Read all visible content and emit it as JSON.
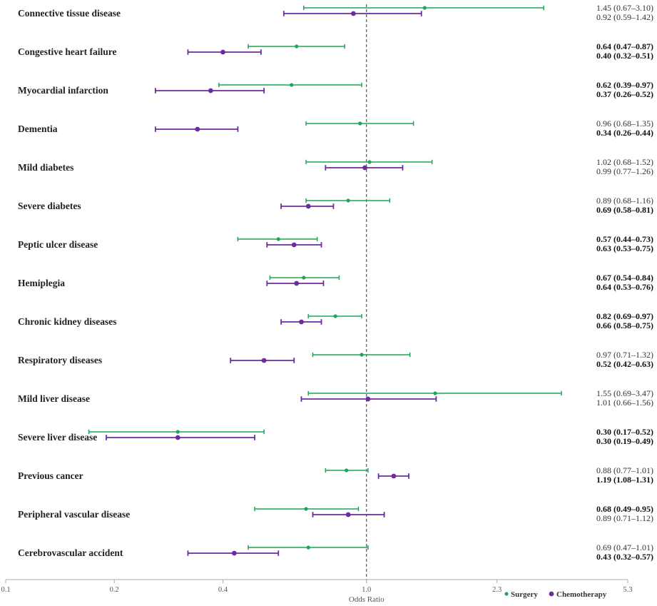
{
  "chart_data": {
    "type": "forest",
    "xlabel": "Odds Ratio",
    "x_scale": "log",
    "xlim": [
      0.1,
      5.3
    ],
    "x_ticks": [
      0.1,
      0.2,
      0.4,
      1.0,
      2.3,
      5.3
    ],
    "x_tick_labels": [
      "0.1",
      "0.2",
      "0.4",
      "1.0",
      "2.3",
      "5.3"
    ],
    "reference_line": 1.0,
    "legend_position": "bottom-right",
    "series": [
      {
        "name": "Surgery",
        "color": "#1fa55a"
      },
      {
        "name": "Chemotherapy",
        "color": "#6a2c9f"
      }
    ],
    "rows": [
      {
        "label": "Connective tissue disease",
        "surgery": {
          "or": 1.45,
          "lo": 0.67,
          "hi": 3.1,
          "text": "1.45 (0.67–3.10)",
          "significant": false
        },
        "chemotherapy": {
          "or": 0.92,
          "lo": 0.59,
          "hi": 1.42,
          "text": "0.92 (0.59–1.42)",
          "significant": false
        }
      },
      {
        "label": "Congestive heart failure",
        "surgery": {
          "or": 0.64,
          "lo": 0.47,
          "hi": 0.87,
          "text": "0.64 (0.47–0.87)",
          "significant": true
        },
        "chemotherapy": {
          "or": 0.4,
          "lo": 0.32,
          "hi": 0.51,
          "text": "0.40 (0.32–0.51)",
          "significant": true
        }
      },
      {
        "label": "Myocardial infarction",
        "surgery": {
          "or": 0.62,
          "lo": 0.39,
          "hi": 0.97,
          "text": "0.62 (0.39–0.97)",
          "significant": true
        },
        "chemotherapy": {
          "or": 0.37,
          "lo": 0.26,
          "hi": 0.52,
          "text": "0.37 (0.26–0.52)",
          "significant": true
        }
      },
      {
        "label": "Dementia",
        "surgery": {
          "or": 0.96,
          "lo": 0.68,
          "hi": 1.35,
          "text": "0.96 (0.68–1.35)",
          "significant": false
        },
        "chemotherapy": {
          "or": 0.34,
          "lo": 0.26,
          "hi": 0.44,
          "text": "0.34 (0.26–0.44)",
          "significant": true
        }
      },
      {
        "label": "Mild diabetes",
        "surgery": {
          "or": 1.02,
          "lo": 0.68,
          "hi": 1.52,
          "text": "1.02 (0.68–1.52)",
          "significant": false
        },
        "chemotherapy": {
          "or": 0.99,
          "lo": 0.77,
          "hi": 1.26,
          "text": "0.99 (0.77–1.26)",
          "significant": false
        }
      },
      {
        "label": "Severe diabetes",
        "surgery": {
          "or": 0.89,
          "lo": 0.68,
          "hi": 1.16,
          "text": "0.89 (0.68–1.16)",
          "significant": false
        },
        "chemotherapy": {
          "or": 0.69,
          "lo": 0.58,
          "hi": 0.81,
          "text": "0.69 (0.58–0.81)",
          "significant": true
        }
      },
      {
        "label": "Peptic ulcer disease",
        "surgery": {
          "or": 0.57,
          "lo": 0.44,
          "hi": 0.73,
          "text": "0.57 (0.44–0.73)",
          "significant": true
        },
        "chemotherapy": {
          "or": 0.63,
          "lo": 0.53,
          "hi": 0.75,
          "text": "0.63 (0.53–0.75)",
          "significant": true
        }
      },
      {
        "label": "Hemiplegia",
        "surgery": {
          "or": 0.67,
          "lo": 0.54,
          "hi": 0.84,
          "text": "0.67 (0.54–0.84)",
          "significant": true
        },
        "chemotherapy": {
          "or": 0.64,
          "lo": 0.53,
          "hi": 0.76,
          "text": "0.64 (0.53–0.76)",
          "significant": true
        }
      },
      {
        "label": "Chronic kidney diseases",
        "surgery": {
          "or": 0.82,
          "lo": 0.69,
          "hi": 0.97,
          "text": "0.82 (0.69–0.97)",
          "significant": true
        },
        "chemotherapy": {
          "or": 0.66,
          "lo": 0.58,
          "hi": 0.75,
          "text": "0.66 (0.58–0.75)",
          "significant": true
        }
      },
      {
        "label": "Respiratory diseases",
        "surgery": {
          "or": 0.97,
          "lo": 0.71,
          "hi": 1.32,
          "text": "0.97 (0.71–1.32)",
          "significant": false
        },
        "chemotherapy": {
          "or": 0.52,
          "lo": 0.42,
          "hi": 0.63,
          "text": "0.52 (0.42–0.63)",
          "significant": true
        }
      },
      {
        "label": "Mild liver disease",
        "surgery": {
          "or": 1.55,
          "lo": 0.69,
          "hi": 3.47,
          "text": "1.55 (0.69–3.47)",
          "significant": false
        },
        "chemotherapy": {
          "or": 1.01,
          "lo": 0.66,
          "hi": 1.56,
          "text": "1.01 (0.66–1.56)",
          "significant": false
        }
      },
      {
        "label": "Severe liver disease",
        "surgery": {
          "or": 0.3,
          "lo": 0.17,
          "hi": 0.52,
          "text": "0.30 (0.17–0.52)",
          "significant": true
        },
        "chemotherapy": {
          "or": 0.3,
          "lo": 0.19,
          "hi": 0.49,
          "text": "0.30 (0.19–0.49)",
          "significant": true
        }
      },
      {
        "label": "Previous cancer",
        "surgery": {
          "or": 0.88,
          "lo": 0.77,
          "hi": 1.01,
          "text": "0.88 (0.77–1.01)",
          "significant": false
        },
        "chemotherapy": {
          "or": 1.19,
          "lo": 1.08,
          "hi": 1.31,
          "text": "1.19 (1.08–1.31)",
          "significant": true
        }
      },
      {
        "label": "Peripheral vascular disease",
        "surgery": {
          "or": 0.68,
          "lo": 0.49,
          "hi": 0.95,
          "text": "0.68 (0.49–0.95)",
          "significant": true
        },
        "chemotherapy": {
          "or": 0.89,
          "lo": 0.71,
          "hi": 1.12,
          "text": "0.89 (0.71–1.12)",
          "significant": false
        }
      },
      {
        "label": "Cerebrovascular accident",
        "surgery": {
          "or": 0.69,
          "lo": 0.47,
          "hi": 1.01,
          "text": "0.69 (0.47–1.01)",
          "significant": false
        },
        "chemotherapy": {
          "or": 0.43,
          "lo": 0.32,
          "hi": 0.57,
          "text": "0.43 (0.32–0.57)",
          "significant": true
        }
      }
    ]
  }
}
